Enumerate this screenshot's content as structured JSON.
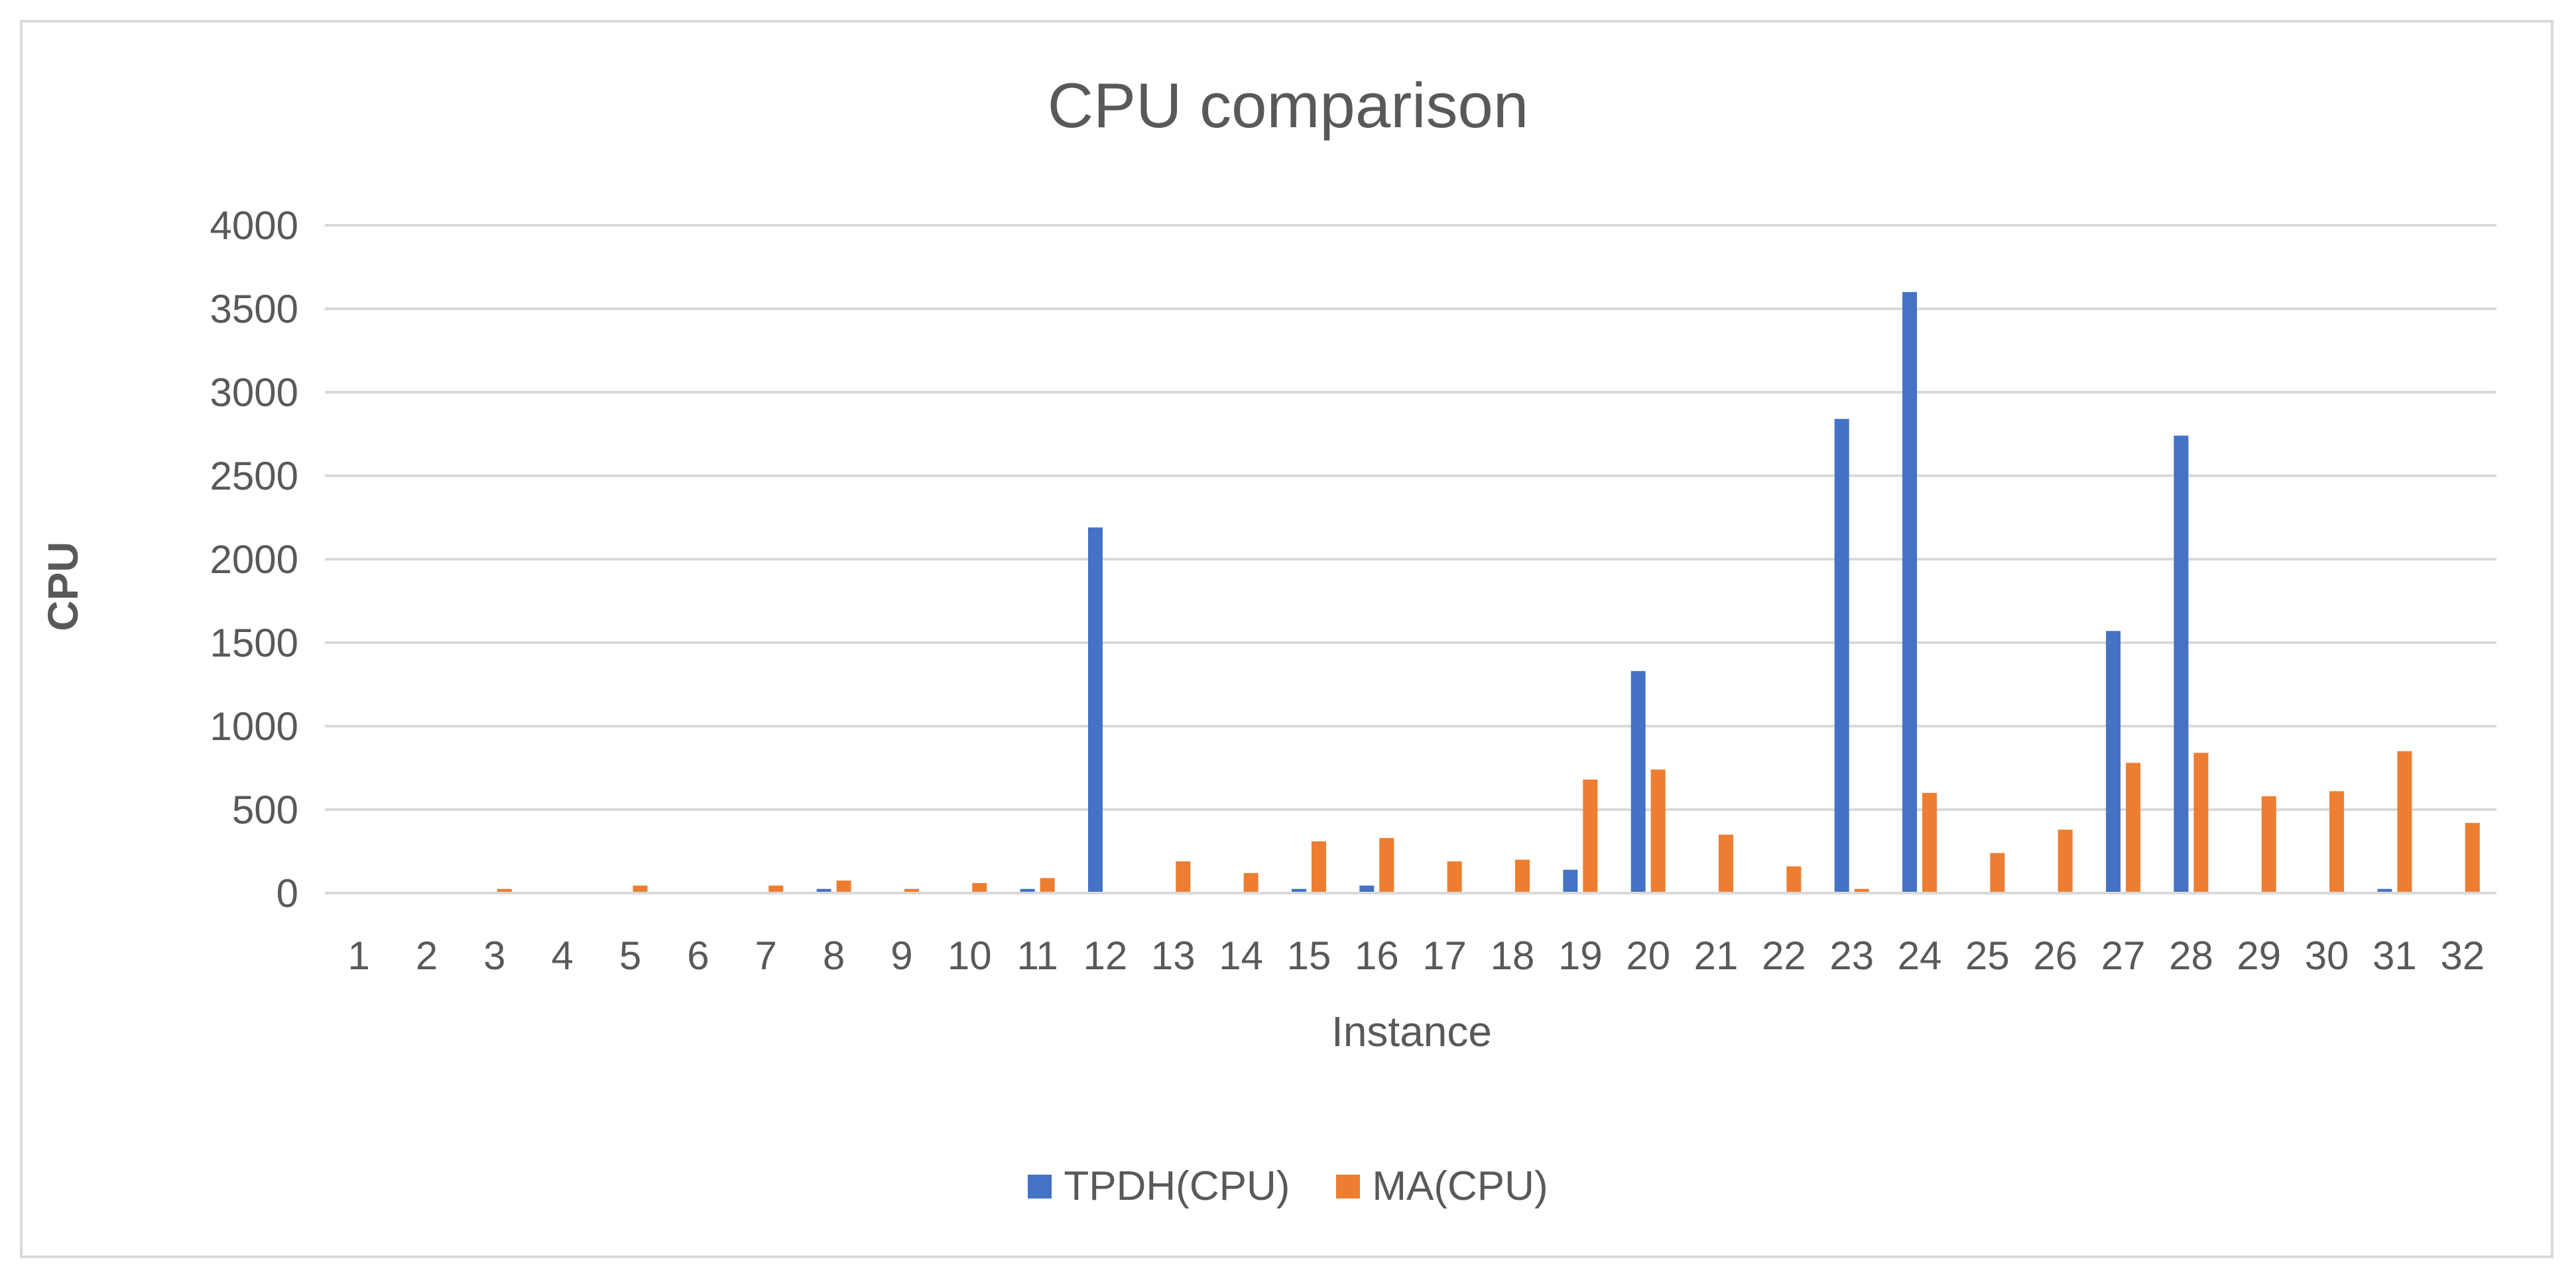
{
  "chart_data": {
    "type": "bar",
    "title": "CPU comparison",
    "xlabel": "Instance",
    "ylabel": "CPU",
    "ylim": [
      0,
      4000
    ],
    "yticks": [
      0,
      500,
      1000,
      1500,
      2000,
      2500,
      3000,
      3500,
      4000
    ],
    "categories": [
      "1",
      "2",
      "3",
      "4",
      "5",
      "6",
      "7",
      "8",
      "9",
      "10",
      "11",
      "12",
      "13",
      "14",
      "15",
      "16",
      "17",
      "18",
      "19",
      "20",
      "21",
      "22",
      "23",
      "24",
      "25",
      "26",
      "27",
      "28",
      "29",
      "30",
      "31",
      "32"
    ],
    "series": [
      {
        "name": "TPDH(CPU)",
        "color": "#4472c4",
        "values": [
          2,
          2,
          2,
          2,
          2,
          2,
          2,
          25,
          2,
          2,
          25,
          2190,
          2,
          2,
          25,
          45,
          2,
          2,
          140,
          1330,
          2,
          2,
          2840,
          3600,
          2,
          2,
          1570,
          2740,
          2,
          2,
          25,
          2
        ]
      },
      {
        "name": "MA(CPU)",
        "color": "#ed7d31",
        "values": [
          2,
          2,
          25,
          2,
          45,
          2,
          45,
          75,
          25,
          60,
          90,
          2,
          190,
          120,
          310,
          330,
          190,
          200,
          680,
          740,
          350,
          160,
          25,
          600,
          240,
          380,
          780,
          840,
          580,
          610,
          850,
          420
        ]
      }
    ],
    "grid": true,
    "legend_position": "bottom"
  }
}
